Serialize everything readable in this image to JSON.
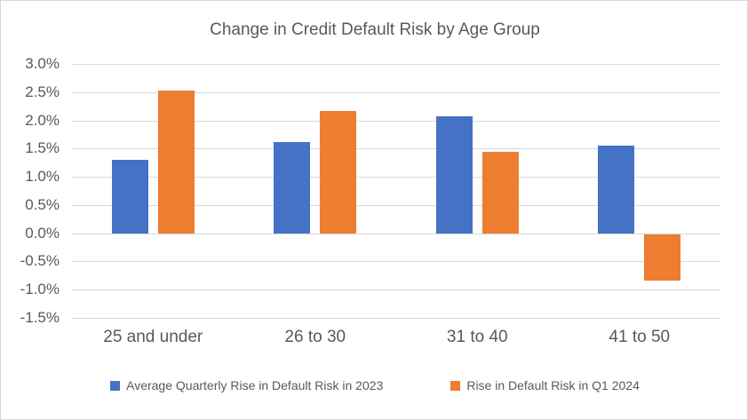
{
  "window": {
    "background": "#ffffff",
    "border_color": "#d6d6d6"
  },
  "chart_data": {
    "type": "bar",
    "title": "Change in Credit Default Risk by Age Group",
    "categories": [
      "25 and under",
      "26 to 30",
      "31 to 40",
      "41 to 50"
    ],
    "series": [
      {
        "name": "Average Quarterly Rise in Default Risk in 2023",
        "color": "#4472C4",
        "values": [
          1.3,
          1.62,
          2.07,
          1.55
        ]
      },
      {
        "name": "Rise in Default Risk in Q1 2024",
        "color": "#ED7D31",
        "values": [
          2.53,
          2.17,
          1.45,
          -0.82
        ]
      }
    ],
    "xlabel": "",
    "ylabel": "",
    "ylim": [
      -1.5,
      3.0
    ],
    "ytick_step": 0.5,
    "ytick_labels": [
      "3.0%",
      "2.5%",
      "2.0%",
      "1.5%",
      "1.0%",
      "0.5%",
      "0.0%",
      "-0.5%",
      "-1.0%",
      "-1.5%"
    ],
    "grid": "horizontal",
    "gridline_color": "#d9d9d9",
    "text_color": "#595959",
    "legend_position": "bottom"
  }
}
